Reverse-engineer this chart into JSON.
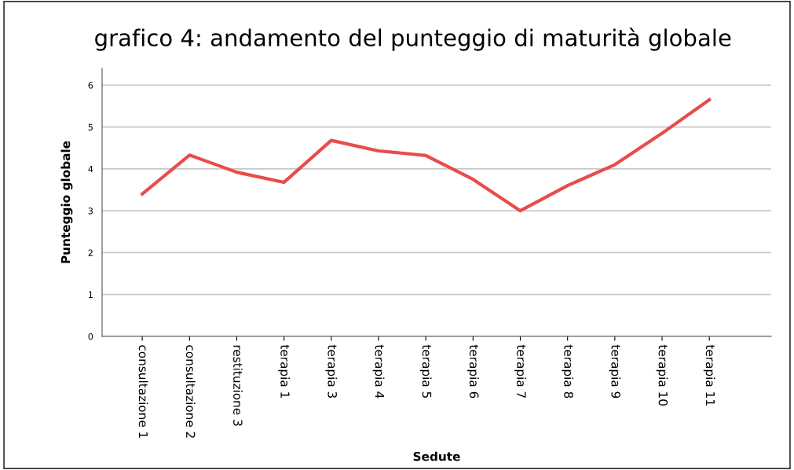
{
  "chart_data": {
    "type": "line",
    "title": "grafico 4: andamento del punteggio di maturità globale",
    "xlabel": "Sedute",
    "ylabel": "Punteggio globale",
    "categories": [
      "consultazione 1",
      "consultazione 2",
      "restituzione 3",
      "terapia 1",
      "terapia 3",
      "terapia 4",
      "terapia 5",
      "terapia 6",
      "terapia 7",
      "terapia 8",
      "terapia 9",
      "terapia 10",
      "terapia 11"
    ],
    "series": [
      {
        "color": "#e84c4c",
        "values": [
          3.4,
          4.33,
          3.92,
          3.68,
          4.68,
          4.43,
          4.32,
          3.75,
          3.0,
          3.6,
          4.1,
          4.85,
          5.65
        ]
      }
    ],
    "ylim": [
      0,
      6.4
    ],
    "yticks": [
      0,
      1,
      2,
      3,
      4,
      5,
      6
    ],
    "grid": "y",
    "legend": false,
    "marker": "none",
    "line_style": "solid"
  }
}
